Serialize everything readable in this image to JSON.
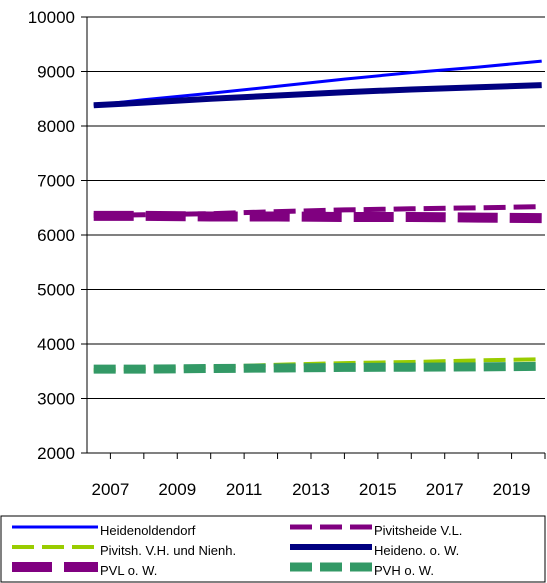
{
  "chart_data": {
    "type": "line",
    "title": "",
    "xlabel": "",
    "ylabel": "",
    "ylim": [
      2000,
      10000
    ],
    "y_ticks": [
      2000,
      3000,
      4000,
      5000,
      6000,
      7000,
      8000,
      9000,
      10000
    ],
    "x_ticks": [
      2007,
      2009,
      2011,
      2013,
      2015,
      2017,
      2019
    ],
    "xlim": [
      2006.3,
      2020.0
    ],
    "grid": true,
    "legend_position": "bottom",
    "series": [
      {
        "name": "Heidenoldendorf",
        "color": "#0000ff",
        "style": "solid",
        "width": 3,
        "x": [
          2006.5,
          2008,
          2010,
          2012,
          2014,
          2016,
          2018,
          2019.9
        ],
        "values": [
          8380,
          8480,
          8600,
          8730,
          8860,
          8980,
          9080,
          9190
        ]
      },
      {
        "name": "Pivitsheide V.L.",
        "color": "#800080",
        "style": "dashed",
        "width": 5,
        "x": [
          2006.5,
          2008,
          2010,
          2012,
          2014,
          2016,
          2018,
          2019.9
        ],
        "values": [
          6360,
          6370,
          6390,
          6430,
          6460,
          6480,
          6500,
          6520
        ]
      },
      {
        "name": "Pivitsh. V.H. und Nienh.",
        "color": "#99cc00",
        "style": "dashed",
        "width": 4,
        "x": [
          2006.5,
          2008,
          2010,
          2012,
          2014,
          2016,
          2018,
          2019.9
        ],
        "values": [
          3520,
          3550,
          3580,
          3620,
          3650,
          3670,
          3700,
          3720
        ]
      },
      {
        "name": "Heideno. o. W.",
        "color": "#000080",
        "style": "solid",
        "width": 6,
        "x": [
          2006.5,
          2008,
          2010,
          2012,
          2014,
          2016,
          2018,
          2019.9
        ],
        "values": [
          8380,
          8430,
          8500,
          8560,
          8620,
          8670,
          8710,
          8750
        ]
      },
      {
        "name": "PVL o. W.",
        "color": "#800080",
        "style": "longdash",
        "width": 10,
        "x": [
          2006.5,
          2008,
          2010,
          2012,
          2014,
          2016,
          2018,
          2019.9
        ],
        "values": [
          6350,
          6350,
          6340,
          6340,
          6330,
          6330,
          6320,
          6310
        ]
      },
      {
        "name": "PVH o. W.",
        "color": "#339966",
        "style": "dashed",
        "width": 9,
        "x": [
          2006.5,
          2008,
          2010,
          2012,
          2014,
          2016,
          2018,
          2019.9
        ],
        "values": [
          3540,
          3540,
          3550,
          3560,
          3570,
          3575,
          3580,
          3590
        ]
      }
    ]
  }
}
